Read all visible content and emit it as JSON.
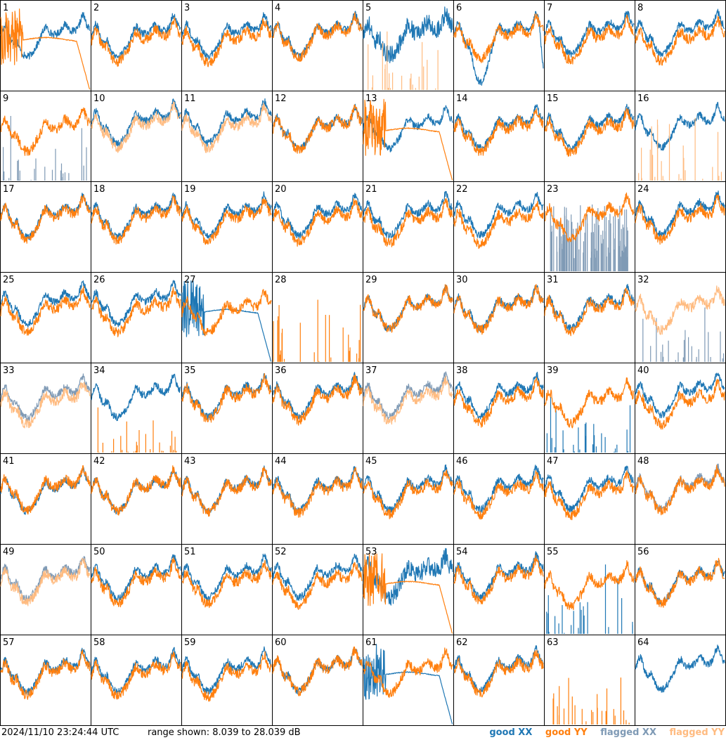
{
  "chart_data": {
    "type": "line",
    "title": "",
    "xlabel": "",
    "ylabel": "",
    "panel_count": 64,
    "panel_labels": [
      "1",
      "2",
      "3",
      "4",
      "5",
      "6",
      "7",
      "8",
      "9",
      "10",
      "11",
      "12",
      "13",
      "14",
      "15",
      "16",
      "17",
      "18",
      "19",
      "20",
      "21",
      "22",
      "23",
      "24",
      "25",
      "26",
      "27",
      "28",
      "29",
      "30",
      "31",
      "32",
      "33",
      "34",
      "35",
      "36",
      "37",
      "38",
      "39",
      "40",
      "41",
      "42",
      "43",
      "44",
      "45",
      "46",
      "47",
      "48",
      "49",
      "50",
      "51",
      "52",
      "53",
      "54",
      "55",
      "56",
      "57",
      "58",
      "59",
      "60",
      "61",
      "62",
      "63",
      "64"
    ],
    "ylim": [
      8.039,
      28.039
    ],
    "series_styles": {
      "good_xx": "#1f77b4",
      "good_yy": "#ff7f0e",
      "flagged_xx": "#7f9ab5",
      "flagged_yy": "#ffbb80"
    },
    "panels": {
      "1": {
        "xx": "good",
        "yy": "drop"
      },
      "5": {
        "xx": "noisy",
        "yy": "flag_spikes"
      },
      "6": {
        "xx": "deep",
        "yy": "good"
      },
      "9": {
        "xx": "flag_spikes",
        "yy": "good"
      },
      "10": {
        "xx": "good",
        "yy": "flagged"
      },
      "11": {
        "xx": "good",
        "yy": "flagged"
      },
      "13": {
        "xx": "good",
        "yy": "drop"
      },
      "16": {
        "xx": "good",
        "yy": "flag_spikes"
      },
      "23": {
        "xx": "flag_noise",
        "yy": "good"
      },
      "27": {
        "xx": "drop",
        "yy": "good"
      },
      "28": {
        "xx": "none",
        "yy": "spikes"
      },
      "32": {
        "xx": "flag_spikes",
        "yy": "flagged"
      },
      "33": {
        "xx": "flagged",
        "yy": "flagged"
      },
      "34": {
        "xx": "good",
        "yy": "spikes"
      },
      "37": {
        "xx": "flagged",
        "yy": "flagged"
      },
      "39": {
        "xx": "spikes",
        "yy": "good"
      },
      "48": {
        "xx": "flagged",
        "yy": "good"
      },
      "49": {
        "xx": "flagged",
        "yy": "flagged"
      },
      "53": {
        "xx": "noisy",
        "yy": "drop"
      },
      "55": {
        "xx": "spikes",
        "yy": "good"
      },
      "61": {
        "xx": "drop",
        "yy": "good"
      },
      "63": {
        "xx": "none",
        "yy": "spikes"
      },
      "64": {
        "xx": "good",
        "yy": "none"
      }
    }
  },
  "footer": {
    "timestamp": "2024/11/10 23:24:44 UTC",
    "range": "range shown: 8.039 to 28.039 dB"
  },
  "legend": {
    "good_xx": "good XX",
    "good_yy": "good YY",
    "flagged_xx": "flagged XX",
    "flagged_yy": "flagged YY"
  }
}
